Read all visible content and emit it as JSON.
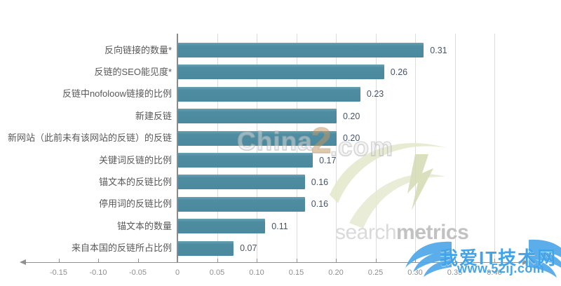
{
  "chart_data": {
    "type": "bar",
    "orientation": "horizontal",
    "title": "",
    "xlabel": "",
    "ylabel": "",
    "categories": [
      "反向链接的数量*",
      "反链的SEO能见度*",
      "反链中nofoloow链接的比例",
      "新建反链",
      "新网站（此前未有该网站的反链）的反链",
      "关键词反链的比例",
      "锚文本的反链比例",
      "停用词的反链比例",
      "锚文本的数量",
      "来自本国的反链所占比例"
    ],
    "values": [
      0.31,
      0.26,
      0.23,
      0.2,
      0.2,
      0.17,
      0.16,
      0.16,
      0.11,
      0.07
    ],
    "value_labels": [
      "0.31",
      "0.26",
      "0.23",
      "0.20",
      "0.20",
      "0.17",
      "0.16",
      "0.16",
      "0.11",
      "0.07"
    ],
    "x_tick_values": [
      -0.15,
      -0.1,
      -0.05,
      0,
      0.05,
      0.1,
      0.15,
      0.2,
      0.25,
      0.3,
      0.35,
      0.4
    ],
    "x_tick_labels": [
      "-0.15",
      "-0.10",
      "-0.05",
      "0",
      "0.05",
      "0.10",
      "0.15",
      "0.20",
      "0.25",
      "0.30",
      "0.35",
      "0.40"
    ],
    "gridline_values": [
      0.05,
      0.1,
      0.15,
      0.2,
      0.25,
      0.3,
      0.35,
      0.4
    ],
    "xlim": [
      -0.19,
      0.435
    ],
    "grid_on": true,
    "legend_position": "none",
    "bar_color": "#4e8da1",
    "value_label_color": "#44546a",
    "category_label_color": "#595959",
    "axis_color": "#909090",
    "gridline_color": "#dcdcdc"
  },
  "watermarks": {
    "chinaz": {
      "part1": "China",
      "part2": "2",
      "part3": ".com"
    },
    "searchmetrics": {
      "word1": "search",
      "word2": "metrics"
    },
    "iloveit": {
      "title": "我爱IT技术网",
      "url": "www.52ij.com",
      "color": "#42a3e8"
    }
  }
}
